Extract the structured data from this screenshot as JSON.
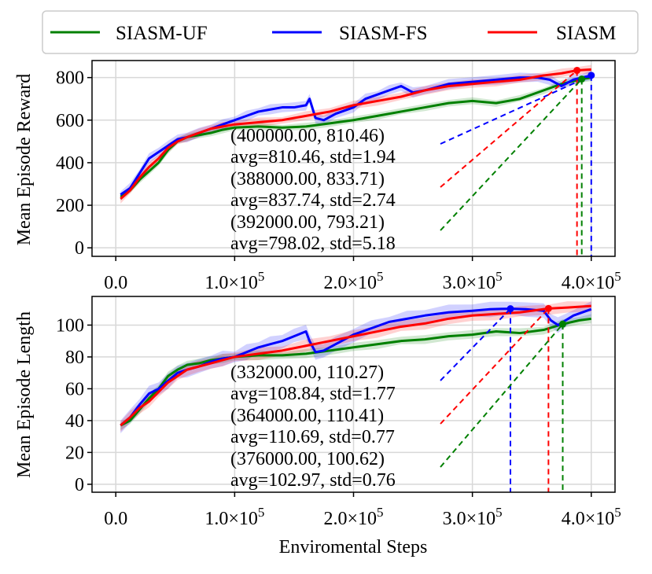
{
  "legend": {
    "entries": [
      {
        "label": "SIASM-UF",
        "color": "#008000"
      },
      {
        "label": "SIASM-FS",
        "color": "#0000ff"
      },
      {
        "label": "SIASM",
        "color": "#ff0000"
      }
    ]
  },
  "xlabel": "Enviromental Steps",
  "chart_data": [
    {
      "type": "line",
      "ylabel": "Mean Episode Reward",
      "xlim": [
        -20000,
        420000
      ],
      "ylim": [
        -40,
        880
      ],
      "yticks": [
        0,
        200,
        400,
        600,
        800
      ],
      "xticks": [
        {
          "v": 0,
          "mant": "0.0",
          "exp": ""
        },
        {
          "v": 100000,
          "mant": "1.0×10",
          "exp": "5"
        },
        {
          "v": 200000,
          "mant": "2.0×10",
          "exp": "5"
        },
        {
          "v": 300000,
          "mant": "3.0×10",
          "exp": "5"
        },
        {
          "v": 400000,
          "mant": "4.0×10",
          "exp": "5"
        }
      ],
      "series": [
        {
          "name": "SIASM-UF",
          "color": "#008000",
          "band": 18,
          "x": [
            4000,
            12000,
            20000,
            28000,
            36000,
            44000,
            52000,
            60000,
            70000,
            80000,
            90000,
            100000,
            120000,
            140000,
            160000,
            180000,
            200000,
            220000,
            240000,
            260000,
            280000,
            300000,
            320000,
            340000,
            360000,
            375000,
            392000,
            400000
          ],
          "y": [
            240,
            270,
            320,
            360,
            400,
            460,
            500,
            520,
            530,
            540,
            555,
            565,
            570,
            565,
            570,
            585,
            600,
            620,
            640,
            660,
            680,
            690,
            680,
            700,
            740,
            770,
            793,
            800
          ]
        },
        {
          "name": "SIASM-FS",
          "color": "#0000ff",
          "band": 25,
          "x": [
            4000,
            12000,
            20000,
            28000,
            36000,
            44000,
            52000,
            60000,
            70000,
            80000,
            90000,
            100000,
            110000,
            120000,
            130000,
            140000,
            150000,
            160000,
            163000,
            168000,
            175000,
            185000,
            200000,
            210000,
            220000,
            230000,
            240000,
            250000,
            260000,
            280000,
            300000,
            320000,
            340000,
            355000,
            365000,
            375000,
            385000,
            392000,
            400000
          ],
          "y": [
            250,
            280,
            350,
            420,
            450,
            480,
            510,
            520,
            540,
            560,
            580,
            600,
            620,
            640,
            650,
            660,
            660,
            670,
            700,
            610,
            600,
            630,
            660,
            700,
            720,
            740,
            760,
            730,
            740,
            770,
            780,
            790,
            800,
            800,
            790,
            760,
            790,
            800,
            810
          ]
        },
        {
          "name": "SIASM",
          "color": "#ff0000",
          "band": 22,
          "x": [
            4000,
            12000,
            20000,
            28000,
            36000,
            44000,
            52000,
            60000,
            70000,
            80000,
            90000,
            100000,
            120000,
            140000,
            160000,
            180000,
            200000,
            220000,
            240000,
            260000,
            280000,
            300000,
            320000,
            340000,
            360000,
            375000,
            388000,
            400000
          ],
          "y": [
            230,
            270,
            330,
            380,
            420,
            470,
            500,
            520,
            540,
            560,
            570,
            580,
            590,
            600,
            620,
            640,
            670,
            690,
            710,
            740,
            760,
            770,
            780,
            790,
            810,
            820,
            834,
            838
          ]
        }
      ],
      "annotations": [
        {
          "series": "SIASM-FS",
          "color": "#0000ff",
          "point": "(400000.00, 810.46)",
          "stats": "avg=810.46, std=1.94",
          "x": 400000,
          "y": 810.46
        },
        {
          "series": "SIASM",
          "color": "#ff0000",
          "point": "(388000.00, 833.71)",
          "stats": "avg=837.74, std=2.74",
          "x": 388000,
          "y": 833.71
        },
        {
          "series": "SIASM-UF",
          "color": "#008000",
          "point": "(392000.00, 793.21)",
          "stats": "avg=798.02, std=5.18",
          "x": 392000,
          "y": 793.21
        }
      ]
    },
    {
      "type": "line",
      "ylabel": "Mean Episode Length",
      "xlim": [
        -20000,
        420000
      ],
      "ylim": [
        -5,
        118
      ],
      "yticks": [
        0,
        20,
        40,
        60,
        80,
        100
      ],
      "xticks": [
        {
          "v": 0,
          "mant": "0.0",
          "exp": ""
        },
        {
          "v": 100000,
          "mant": "1.0×10",
          "exp": "5"
        },
        {
          "v": 200000,
          "mant": "2.0×10",
          "exp": "5"
        },
        {
          "v": 300000,
          "mant": "3.0×10",
          "exp": "5"
        },
        {
          "v": 400000,
          "mant": "4.0×10",
          "exp": "5"
        }
      ],
      "series": [
        {
          "name": "SIASM-UF",
          "color": "#008000",
          "band": 3,
          "x": [
            4000,
            12000,
            20000,
            28000,
            36000,
            44000,
            52000,
            60000,
            70000,
            80000,
            90000,
            100000,
            120000,
            140000,
            160000,
            180000,
            200000,
            220000,
            240000,
            260000,
            280000,
            300000,
            320000,
            340000,
            360000,
            376000,
            390000,
            400000
          ],
          "y": [
            37,
            40,
            47,
            54,
            60,
            68,
            72,
            75,
            76,
            78,
            79,
            80,
            81,
            81,
            82,
            84,
            86,
            88,
            90,
            91,
            93,
            94,
            96,
            95,
            97,
            100.6,
            103,
            104
          ]
        },
        {
          "name": "SIASM-FS",
          "color": "#0000ff",
          "band": 5,
          "x": [
            4000,
            12000,
            20000,
            28000,
            36000,
            44000,
            52000,
            60000,
            70000,
            80000,
            90000,
            100000,
            110000,
            120000,
            130000,
            140000,
            150000,
            160000,
            163000,
            168000,
            175000,
            185000,
            200000,
            215000,
            230000,
            245000,
            260000,
            280000,
            300000,
            315000,
            332000,
            345000,
            360000,
            366000,
            372000,
            385000,
            400000
          ],
          "y": [
            37,
            42,
            50,
            57,
            60,
            65,
            70,
            72,
            74,
            77,
            79,
            80,
            83,
            86,
            88,
            90,
            93,
            96,
            90,
            83,
            84,
            88,
            94,
            98,
            102,
            104,
            106,
            108,
            109,
            110,
            110.3,
            110,
            109,
            103,
            100,
            106,
            110
          ]
        },
        {
          "name": "SIASM",
          "color": "#ff0000",
          "band": 4,
          "x": [
            4000,
            12000,
            20000,
            28000,
            36000,
            44000,
            52000,
            60000,
            70000,
            80000,
            90000,
            100000,
            120000,
            140000,
            160000,
            180000,
            200000,
            220000,
            240000,
            260000,
            280000,
            300000,
            320000,
            340000,
            364000,
            380000,
            400000
          ],
          "y": [
            37,
            42,
            48,
            52,
            58,
            64,
            68,
            72,
            74,
            76,
            78,
            80,
            82,
            84,
            87,
            90,
            93,
            96,
            99,
            101,
            104,
            106,
            107,
            108,
            110.4,
            111,
            112
          ]
        }
      ],
      "annotations": [
        {
          "series": "SIASM-FS",
          "color": "#0000ff",
          "point": "(332000.00, 110.27)",
          "stats": "avg=108.84, std=1.77",
          "x": 332000,
          "y": 110.27
        },
        {
          "series": "SIASM",
          "color": "#ff0000",
          "point": "(364000.00, 110.41)",
          "stats": "avg=110.69, std=0.77",
          "x": 364000,
          "y": 110.41
        },
        {
          "series": "SIASM-UF",
          "color": "#008000",
          "point": "(376000.00, 100.62)",
          "stats": "avg=102.97, std=0.76",
          "x": 376000,
          "y": 100.62
        }
      ]
    }
  ]
}
